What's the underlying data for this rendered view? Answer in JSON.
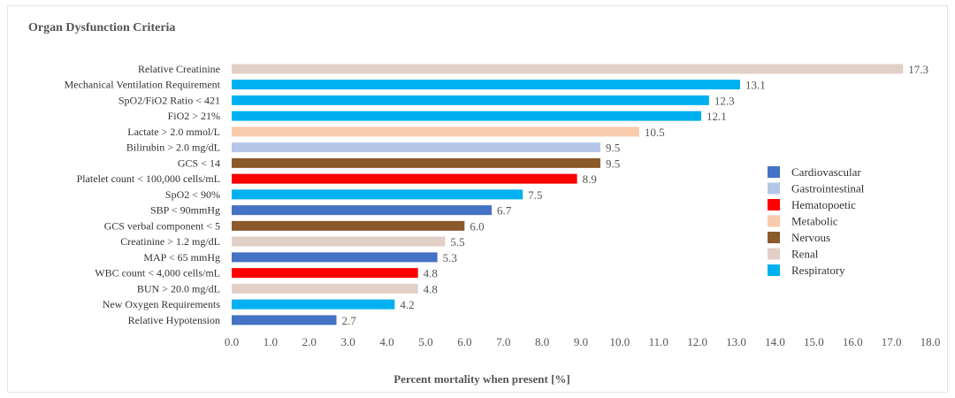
{
  "chart_data": {
    "type": "bar",
    "orientation": "horizontal",
    "title": "Organ Dysfunction Criteria",
    "xlabel": "Percent mortality when present [%]",
    "ylabel": "",
    "xlim": [
      0,
      18
    ],
    "xticks": [
      "0.0",
      "1.0",
      "2.0",
      "3.0",
      "4.0",
      "5.0",
      "6.0",
      "7.0",
      "8.0",
      "9.0",
      "10.0",
      "11.0",
      "12.0",
      "13.0",
      "14.0",
      "15.0",
      "16.0",
      "17.0",
      "18.0"
    ],
    "grid": false,
    "legend_position": "right",
    "legend": [
      {
        "name": "Cardiovascular",
        "color": "#4472c4"
      },
      {
        "name": "Gastrointestinal",
        "color": "#b4c7e7"
      },
      {
        "name": "Hematopoetic",
        "color": "#ff0000"
      },
      {
        "name": "Metabolic",
        "color": "#f8cbad"
      },
      {
        "name": "Nervous",
        "color": "#8b5a2b"
      },
      {
        "name": "Renal",
        "color": "#e2cfc8"
      },
      {
        "name": "Respiratory",
        "color": "#00b0f0"
      }
    ],
    "bars": [
      {
        "label": "Relative Creatinine",
        "value": 17.3,
        "value_label": "17.3",
        "system": "Renal"
      },
      {
        "label": "Mechanical Ventilation Requirement",
        "value": 13.1,
        "value_label": "13.1",
        "system": "Respiratory"
      },
      {
        "label": "SpO2/FiO2 Ratio < 421",
        "value": 12.3,
        "value_label": "12.3",
        "system": "Respiratory"
      },
      {
        "label": "FiO2 > 21%",
        "value": 12.1,
        "value_label": "12.1",
        "system": "Respiratory"
      },
      {
        "label": "Lactate > 2.0 mmol/L",
        "value": 10.5,
        "value_label": "10.5",
        "system": "Metabolic"
      },
      {
        "label": "Bilirubin > 2.0 mg/dL",
        "value": 9.5,
        "value_label": "9.5",
        "system": "Gastrointestinal"
      },
      {
        "label": "GCS < 14",
        "value": 9.5,
        "value_label": "9.5",
        "system": "Nervous"
      },
      {
        "label": "Platelet count < 100,000 cells/mL",
        "value": 8.9,
        "value_label": "8.9",
        "system": "Hematopoetic"
      },
      {
        "label": "SpO2 < 90%",
        "value": 7.5,
        "value_label": "7.5",
        "system": "Respiratory"
      },
      {
        "label": "SBP < 90mmHg",
        "value": 6.7,
        "value_label": "6.7",
        "system": "Cardiovascular"
      },
      {
        "label": "GCS verbal component < 5",
        "value": 6.0,
        "value_label": "6.0",
        "system": "Nervous"
      },
      {
        "label": "Creatinine > 1.2 mg/dL",
        "value": 5.5,
        "value_label": "5.5",
        "system": "Renal"
      },
      {
        "label": "MAP < 65 mmHg",
        "value": 5.3,
        "value_label": "5.3",
        "system": "Cardiovascular"
      },
      {
        "label": "WBC count < 4,000 cells/mL",
        "value": 4.8,
        "value_label": "4.8",
        "system": "Hematopoetic"
      },
      {
        "label": "BUN > 20.0 mg/dL",
        "value": 4.8,
        "value_label": "4.8",
        "system": "Renal"
      },
      {
        "label": "New Oxygen Requirements",
        "value": 4.2,
        "value_label": "4.2",
        "system": "Respiratory"
      },
      {
        "label": "Relative Hypotension",
        "value": 2.7,
        "value_label": "2.7",
        "system": "Cardiovascular"
      }
    ]
  }
}
